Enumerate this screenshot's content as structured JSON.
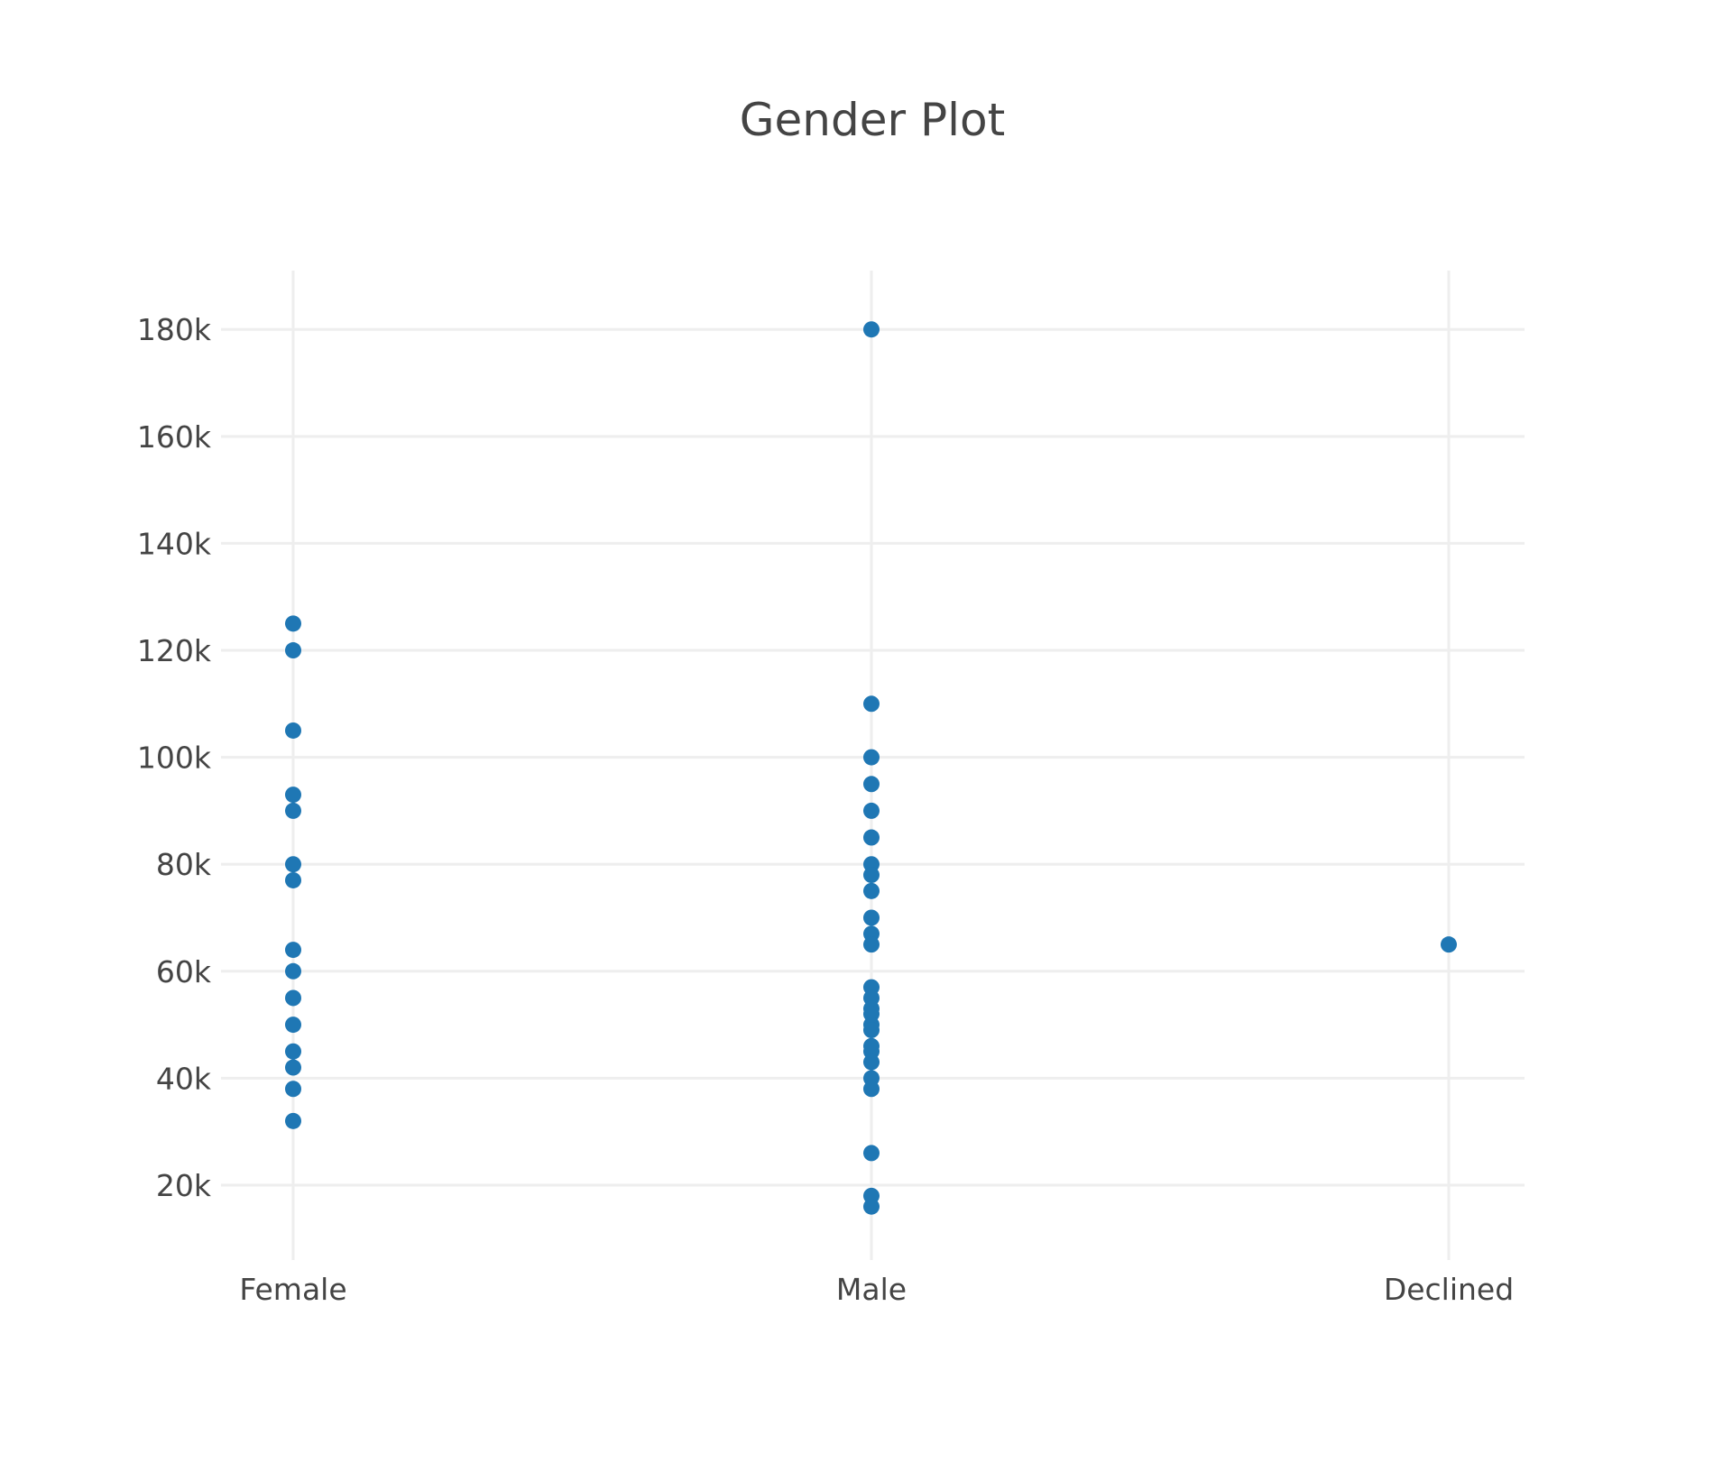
{
  "chart_data": {
    "type": "scatter",
    "title": "Gender Plot",
    "xlabel": "",
    "ylabel": "",
    "categories": [
      "Female",
      "Male",
      "Declined"
    ],
    "y_ticks": [
      20000,
      40000,
      60000,
      80000,
      100000,
      120000,
      140000,
      160000,
      180000
    ],
    "y_tick_labels": [
      "20k",
      "40k",
      "60k",
      "80k",
      "100k",
      "120k",
      "140k",
      "160k",
      "180k"
    ],
    "ylim": [
      6000,
      191000
    ],
    "grid": true,
    "legend": "none",
    "colors": {
      "marker": "#1f77b4",
      "grid": "#eeeeee",
      "text": "#444444"
    },
    "points": [
      {
        "x": "Female",
        "y": 125000
      },
      {
        "x": "Female",
        "y": 120000
      },
      {
        "x": "Female",
        "y": 105000
      },
      {
        "x": "Female",
        "y": 93000
      },
      {
        "x": "Female",
        "y": 90000
      },
      {
        "x": "Female",
        "y": 80000
      },
      {
        "x": "Female",
        "y": 77000
      },
      {
        "x": "Female",
        "y": 64000
      },
      {
        "x": "Female",
        "y": 60000
      },
      {
        "x": "Female",
        "y": 55000
      },
      {
        "x": "Female",
        "y": 50000
      },
      {
        "x": "Female",
        "y": 45000
      },
      {
        "x": "Female",
        "y": 42000
      },
      {
        "x": "Female",
        "y": 38000
      },
      {
        "x": "Female",
        "y": 32000
      },
      {
        "x": "Male",
        "y": 180000
      },
      {
        "x": "Male",
        "y": 110000
      },
      {
        "x": "Male",
        "y": 100000
      },
      {
        "x": "Male",
        "y": 95000
      },
      {
        "x": "Male",
        "y": 90000
      },
      {
        "x": "Male",
        "y": 85000
      },
      {
        "x": "Male",
        "y": 80000
      },
      {
        "x": "Male",
        "y": 78000
      },
      {
        "x": "Male",
        "y": 75000
      },
      {
        "x": "Male",
        "y": 70000
      },
      {
        "x": "Male",
        "y": 67000
      },
      {
        "x": "Male",
        "y": 65000
      },
      {
        "x": "Male",
        "y": 57000
      },
      {
        "x": "Male",
        "y": 55000
      },
      {
        "x": "Male",
        "y": 53000
      },
      {
        "x": "Male",
        "y": 52000
      },
      {
        "x": "Male",
        "y": 50000
      },
      {
        "x": "Male",
        "y": 49000
      },
      {
        "x": "Male",
        "y": 46000
      },
      {
        "x": "Male",
        "y": 45000
      },
      {
        "x": "Male",
        "y": 43000
      },
      {
        "x": "Male",
        "y": 40000
      },
      {
        "x": "Male",
        "y": 38000
      },
      {
        "x": "Male",
        "y": 26000
      },
      {
        "x": "Male",
        "y": 18000
      },
      {
        "x": "Male",
        "y": 16000
      },
      {
        "x": "Declined",
        "y": 65000
      }
    ]
  }
}
